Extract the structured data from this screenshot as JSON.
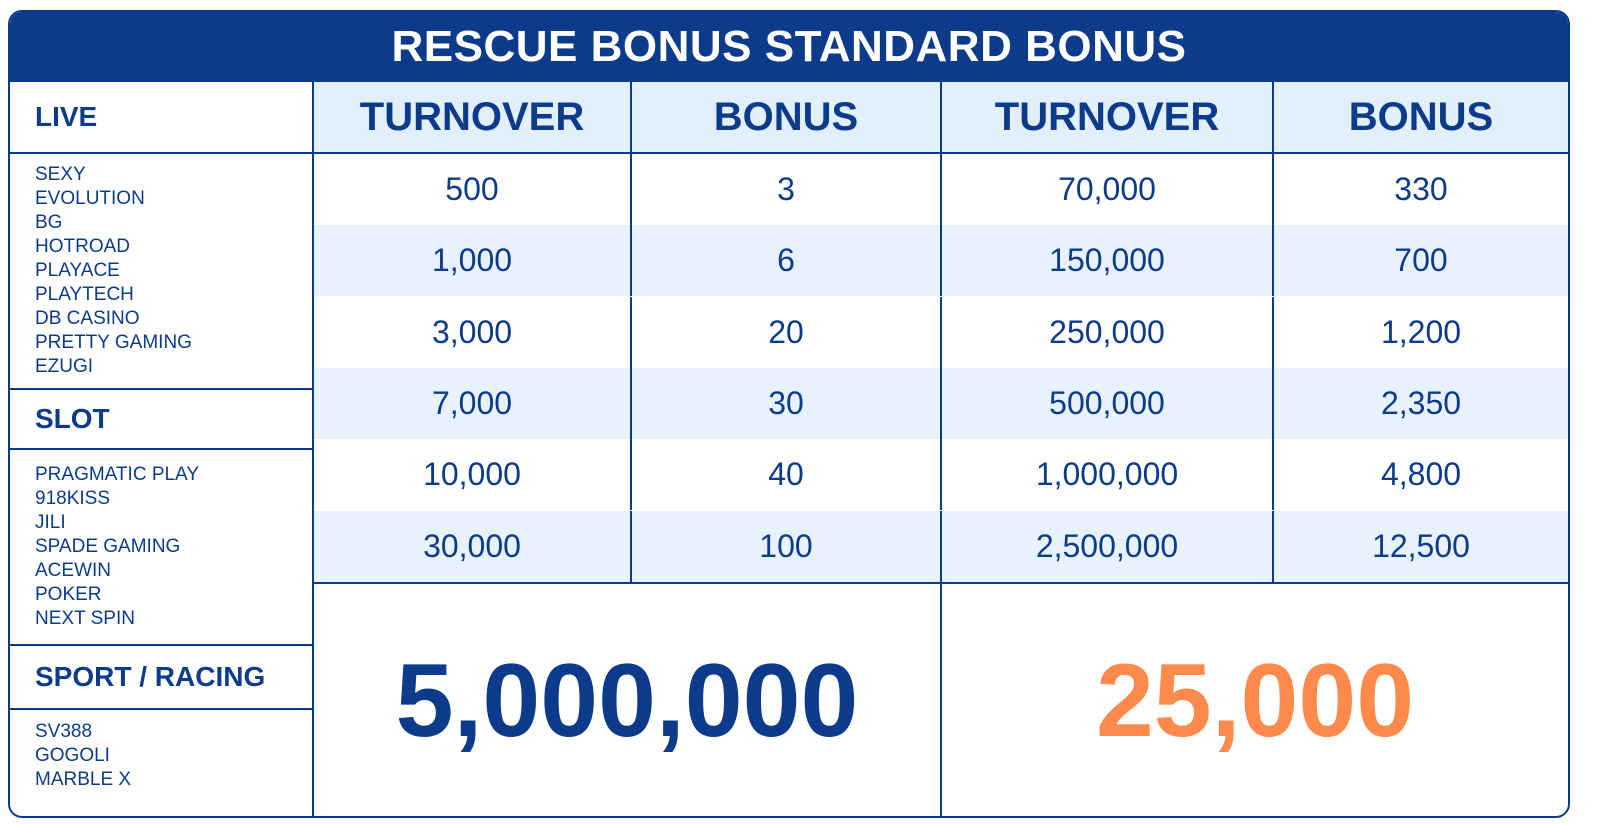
{
  "title": "RESCUE BONUS STANDARD BONUS",
  "sidebar": {
    "live_label": "LIVE",
    "live_items": [
      "SEXY",
      "EVOLUTION",
      "BG",
      "HOTROAD",
      "PLAYACE",
      "PLAYTECH",
      "DB CASINO",
      "PRETTY GAMING",
      "EZUGI"
    ],
    "slot_label": "SLOT",
    "slot_items": [
      "PRAGMATIC PLAY",
      "918KISS",
      "JILI",
      "SPADE GAMING",
      "ACEWIN",
      "POKER",
      "NEXT SPIN"
    ],
    "sport_label": "SPORT / RACING",
    "sport_items": [
      "SV388",
      "GOGOLI",
      "MARBLE X"
    ]
  },
  "headers": [
    "TURNOVER",
    "BONUS",
    "TURNOVER",
    "BONUS"
  ],
  "rows": [
    [
      "500",
      "3",
      "70,000",
      "330"
    ],
    [
      "1,000",
      "6",
      "150,000",
      "700"
    ],
    [
      "3,000",
      "20",
      "250,000",
      "1,200"
    ],
    [
      "7,000",
      "30",
      "500,000",
      "2,350"
    ],
    [
      "10,000",
      "40",
      "1,000,000",
      "4,800"
    ],
    [
      "30,000",
      "100",
      "2,500,000",
      "12,500"
    ]
  ],
  "max_turnover": "5,000,000",
  "max_bonus": "25,000",
  "colors": {
    "primary": "#0d3b8c",
    "accent": "#ff8a4c",
    "header_bg": "#e2effc"
  }
}
